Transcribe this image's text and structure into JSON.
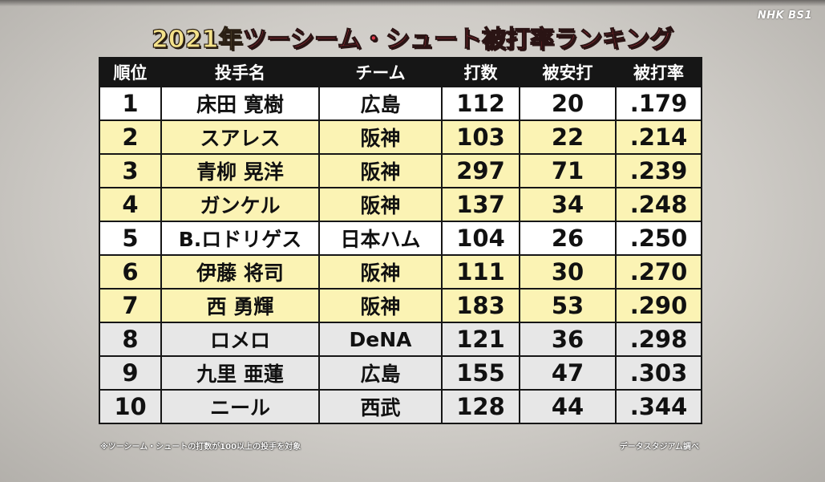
{
  "watermark": "NHK BS1",
  "title": {
    "year": "2021年",
    "main": "ツーシーム・シュート被打率ランキング"
  },
  "table": {
    "headers": [
      "順位",
      "投手名",
      "チーム",
      "打数",
      "被安打",
      "被打率"
    ],
    "rows": [
      {
        "rank": "1",
        "name": "床田 寛樹",
        "team": "広島",
        "at_bats": "112",
        "hits": "20",
        "avg": ".179",
        "row_color": "#ffffff"
      },
      {
        "rank": "2",
        "name": "スアレス",
        "team": "阪神",
        "at_bats": "103",
        "hits": "22",
        "avg": ".214",
        "row_color": "#fbf3b4"
      },
      {
        "rank": "3",
        "name": "青柳 晃洋",
        "team": "阪神",
        "at_bats": "297",
        "hits": "71",
        "avg": ".239",
        "row_color": "#fbf3b4"
      },
      {
        "rank": "4",
        "name": "ガンケル",
        "team": "阪神",
        "at_bats": "137",
        "hits": "34",
        "avg": ".248",
        "row_color": "#fbf3b4"
      },
      {
        "rank": "5",
        "name": "B.ロドリゲス",
        "team": "日本ハム",
        "at_bats": "104",
        "hits": "26",
        "avg": ".250",
        "row_color": "#ffffff"
      },
      {
        "rank": "6",
        "name": "伊藤 将司",
        "team": "阪神",
        "at_bats": "111",
        "hits": "30",
        "avg": ".270",
        "row_color": "#fbf3b4"
      },
      {
        "rank": "7",
        "name": "西 勇輝",
        "team": "阪神",
        "at_bats": "183",
        "hits": "53",
        "avg": ".290",
        "row_color": "#fbf3b4"
      },
      {
        "rank": "8",
        "name": "ロメロ",
        "team": "DeNA",
        "at_bats": "121",
        "hits": "36",
        "avg": ".298",
        "row_color": "#e7e7e7"
      },
      {
        "rank": "9",
        "name": "九里 亜蓮",
        "team": "広島",
        "at_bats": "155",
        "hits": "47",
        "avg": ".303",
        "row_color": "#e7e7e7"
      },
      {
        "rank": "10",
        "name": "ニール",
        "team": "西武",
        "at_bats": "128",
        "hits": "44",
        "avg": ".344",
        "row_color": "#e7e7e7"
      }
    ]
  },
  "footnote": "※ツーシーム・シュートの打数が100以上の投手を対象",
  "source": "データスタジアム調べ",
  "colors": {
    "title_year": "#f4e28a",
    "title_main": "#e03a4a",
    "header_bg": "#161616",
    "row_white": "#ffffff",
    "row_yellow": "#fbf3b4",
    "row_gray": "#e7e7e7"
  }
}
